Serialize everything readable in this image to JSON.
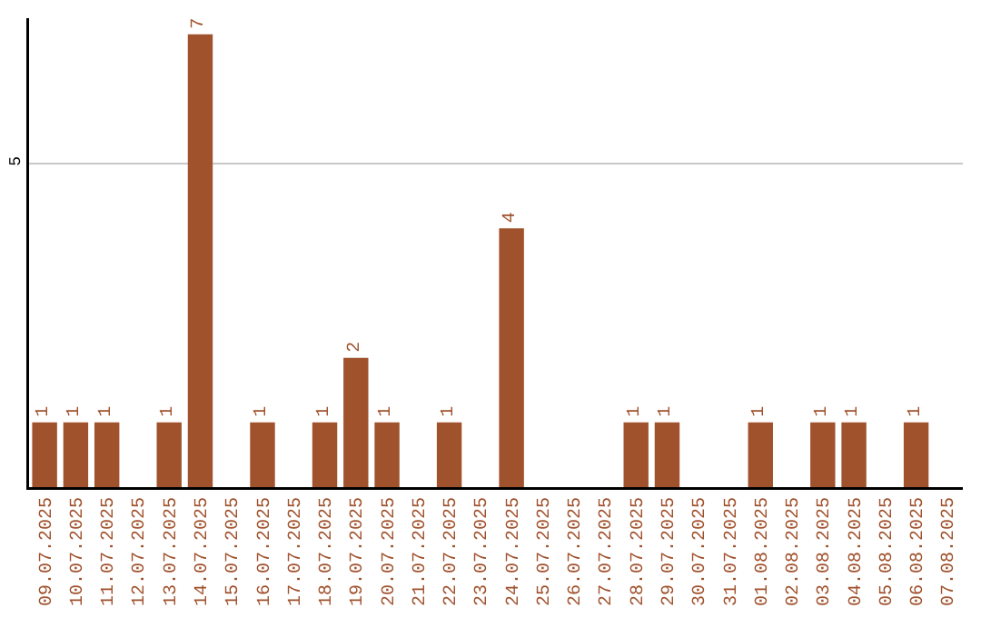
{
  "chart_data": {
    "type": "bar",
    "categories": [
      "09.07.2025",
      "10.07.2025",
      "11.07.2025",
      "12.07.2025",
      "13.07.2025",
      "14.07.2025",
      "15.07.2025",
      "16.07.2025",
      "17.07.2025",
      "18.07.2025",
      "19.07.2025",
      "20.07.2025",
      "21.07.2025",
      "22.07.2025",
      "23.07.2025",
      "24.07.2025",
      "25.07.2025",
      "26.07.2025",
      "27.07.2025",
      "28.07.2025",
      "29.07.2025",
      "30.07.2025",
      "31.07.2025",
      "01.08.2025",
      "02.08.2025",
      "03.08.2025",
      "04.08.2025",
      "05.08.2025",
      "06.08.2025",
      "07.08.2025"
    ],
    "values": [
      1,
      1,
      1,
      0,
      1,
      7,
      0,
      1,
      0,
      1,
      2,
      1,
      0,
      1,
      0,
      4,
      0,
      0,
      0,
      1,
      1,
      0,
      0,
      1,
      0,
      1,
      1,
      0,
      1,
      0
    ],
    "value_labels": [
      "1",
      "1",
      "1",
      null,
      "1",
      "7",
      null,
      "1",
      null,
      "1",
      "2",
      "1",
      null,
      "1",
      null,
      "4",
      null,
      null,
      null,
      "1",
      "1",
      null,
      null,
      "1",
      null,
      "1",
      "1",
      null,
      "1",
      null
    ],
    "color": "#a0522d",
    "ylim": [
      0,
      7.25
    ],
    "yticks": [
      5
    ],
    "grid": "y",
    "legend": false
  }
}
